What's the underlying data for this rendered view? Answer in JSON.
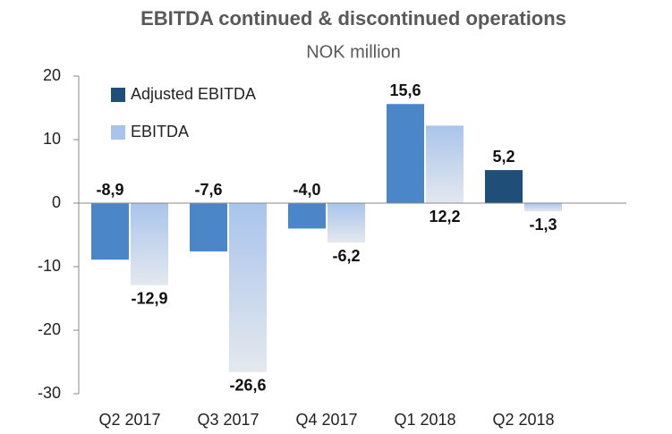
{
  "chart_data": {
    "type": "bar",
    "title": "EBITDA continued & discontinued operations",
    "subtitle": "NOK million",
    "categories": [
      "Q2 2017",
      "Q3 2017",
      "Q4 2017",
      "Q1 2018",
      "Q2 2018"
    ],
    "series": [
      {
        "name": "Adjusted EBITDA",
        "color": "#1f4e79",
        "colors": [
          "#4a86c8",
          "#4a86c8",
          "#4a86c8",
          "#4a86c8",
          "#1f4e79"
        ],
        "values": [
          -8.9,
          -7.6,
          -4.0,
          15.6,
          5.2
        ],
        "value_labels": [
          "-8,9",
          "-7,6",
          "-4,0",
          "15,6",
          "5,2"
        ]
      },
      {
        "name": "EBITDA",
        "color": "#a9c4eb",
        "values": [
          -12.9,
          -26.6,
          -6.2,
          12.2,
          -1.3
        ],
        "value_labels": [
          "-12,9",
          "-26,6",
          "-6,2",
          "12,2",
          "-1,3"
        ]
      }
    ],
    "ylim": [
      -30,
      20
    ],
    "yticks": [
      -30,
      -20,
      -10,
      0,
      10,
      20
    ],
    "grid": false,
    "legend": "upper left"
  }
}
